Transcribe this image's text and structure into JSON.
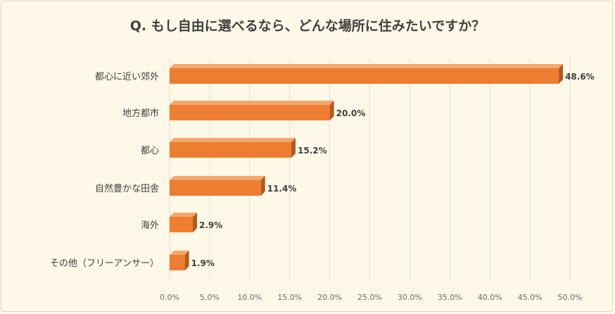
{
  "chart_data": {
    "type": "bar",
    "orientation": "horizontal",
    "title": "Q. もし自由に選べるなら、どんな場所に住みたいですか？",
    "categories": [
      "都心に近い郊外",
      "地方都市",
      "都心",
      "自然豊かな田舎",
      "海外",
      "その他（フリーアンサー）"
    ],
    "values": [
      48.6,
      20.0,
      15.2,
      11.4,
      2.9,
      1.9
    ],
    "value_labels": [
      "48.6%",
      "20.0%",
      "15.2%",
      "11.4%",
      "2.9%",
      "1.9%"
    ],
    "xlim": [
      0,
      50
    ],
    "xticks": [
      0,
      5,
      10,
      15,
      20,
      25,
      30,
      35,
      40,
      45,
      50
    ],
    "xtick_labels": [
      "0.0%",
      "5.0%",
      "10.0%",
      "15.0%",
      "20.0%",
      "25.0%",
      "30.0%",
      "35.0%",
      "40.0%",
      "45.0%",
      "50.0%"
    ],
    "grid": true,
    "bar_color": "#ed7d31",
    "bar_side_color": "#b35a1c",
    "background_color": "#fdf8e8"
  }
}
